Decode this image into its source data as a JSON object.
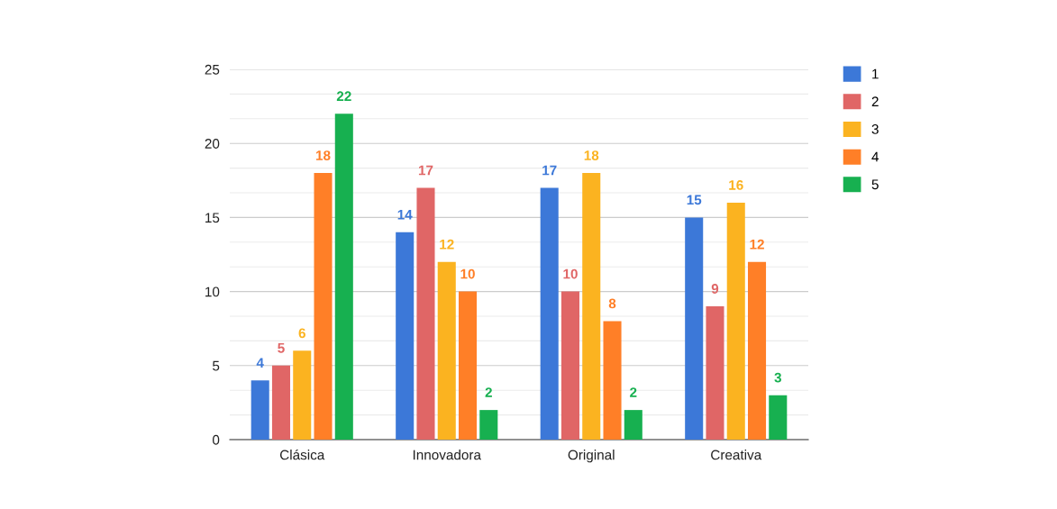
{
  "chart_data": {
    "type": "bar",
    "categories": [
      "Clásica",
      "Innovadora",
      "Original",
      "Creativa"
    ],
    "series": [
      {
        "name": "1",
        "color": "#3c78d8",
        "values": [
          4,
          14,
          17,
          15
        ]
      },
      {
        "name": "2",
        "color": "#e06666",
        "values": [
          5,
          17,
          10,
          9
        ]
      },
      {
        "name": "3",
        "color": "#fbb320",
        "values": [
          6,
          12,
          18,
          16
        ]
      },
      {
        "name": "4",
        "color": "#ff7f27",
        "values": [
          18,
          10,
          8,
          12
        ]
      },
      {
        "name": "5",
        "color": "#17b050",
        "values": [
          22,
          2,
          2,
          3
        ]
      }
    ],
    "ylim": [
      0,
      25
    ],
    "yticks": [
      0,
      {
        "value": 1.667,
        "label": null
      },
      {
        "value": 3.333,
        "label": null
      },
      5,
      {
        "value": 6.667,
        "label": null
      },
      {
        "value": 8.333,
        "label": null
      },
      10,
      {
        "value": 11.667,
        "label": null
      },
      {
        "value": 13.333,
        "label": null
      },
      15,
      {
        "value": 16.667,
        "label": null
      },
      {
        "value": 18.333,
        "label": null
      },
      20,
      {
        "value": 21.667,
        "label": null
      },
      {
        "value": 23.333,
        "label": null
      },
      25
    ],
    "grid": "y",
    "legend": "top right",
    "data_labels": true
  }
}
